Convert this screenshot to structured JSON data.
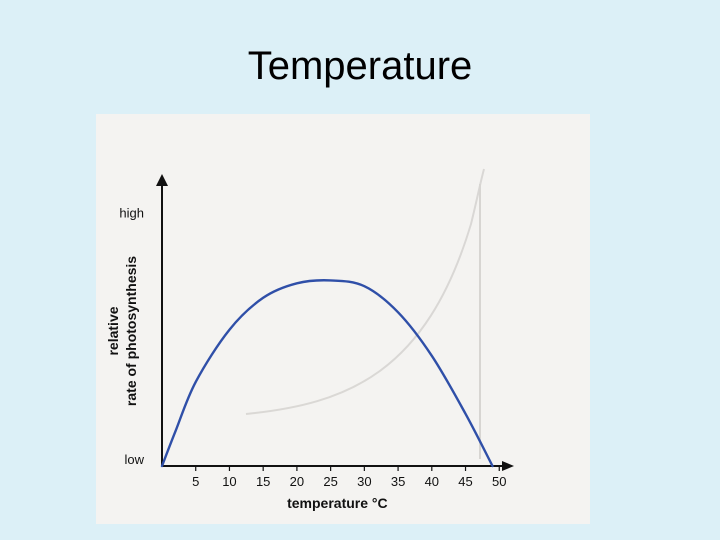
{
  "slide": {
    "title": "Temperature"
  },
  "chart_data": {
    "type": "line",
    "title": "",
    "xlabel": "temperature °C",
    "ylabel": "relative rate of photosynthesis",
    "y_tick_labels": {
      "high": "high",
      "low": "low"
    },
    "x_ticks": [
      5,
      10,
      15,
      20,
      25,
      30,
      35,
      40,
      45,
      50
    ],
    "xlim": [
      0,
      51
    ],
    "ylim": [
      0,
      1
    ],
    "grid": false,
    "line_color": "#2f4fa8",
    "series": [
      {
        "x": [
          0,
          2,
          5,
          10,
          15,
          20,
          25,
          30,
          35,
          40,
          45,
          49
        ],
        "y": [
          0.0,
          0.12,
          0.29,
          0.47,
          0.58,
          0.63,
          0.64,
          0.62,
          0.53,
          0.38,
          0.18,
          0.0
        ]
      }
    ]
  }
}
